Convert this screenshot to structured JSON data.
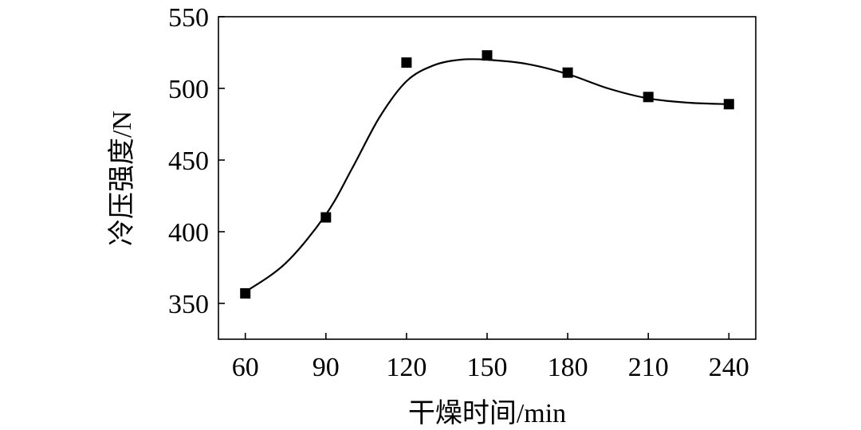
{
  "chart_data": {
    "type": "scatter",
    "title": "",
    "xlabel": "干燥时间/min",
    "ylabel": "冷压强度/N",
    "xlim": [
      50,
      250
    ],
    "ylim": [
      325,
      550
    ],
    "xticks": [
      60,
      90,
      120,
      150,
      180,
      210,
      240
    ],
    "yticks": [
      350,
      400,
      450,
      500,
      550
    ],
    "grid": false,
    "legend": "none",
    "series": [
      {
        "x": [
          60,
          90,
          120,
          150,
          180,
          210,
          240
        ],
        "y": [
          357,
          410,
          518,
          523,
          511,
          494,
          489
        ],
        "marker": "square",
        "color": "#000000"
      }
    ],
    "fit_curve": {
      "x": [
        60,
        75,
        90,
        100,
        110,
        120,
        130,
        140,
        150,
        165,
        180,
        195,
        210,
        225,
        240
      ],
      "y": [
        358,
        378,
        412,
        445,
        480,
        505,
        516,
        520,
        520,
        517,
        510,
        500,
        493,
        490,
        489
      ],
      "color": "#000000"
    }
  }
}
